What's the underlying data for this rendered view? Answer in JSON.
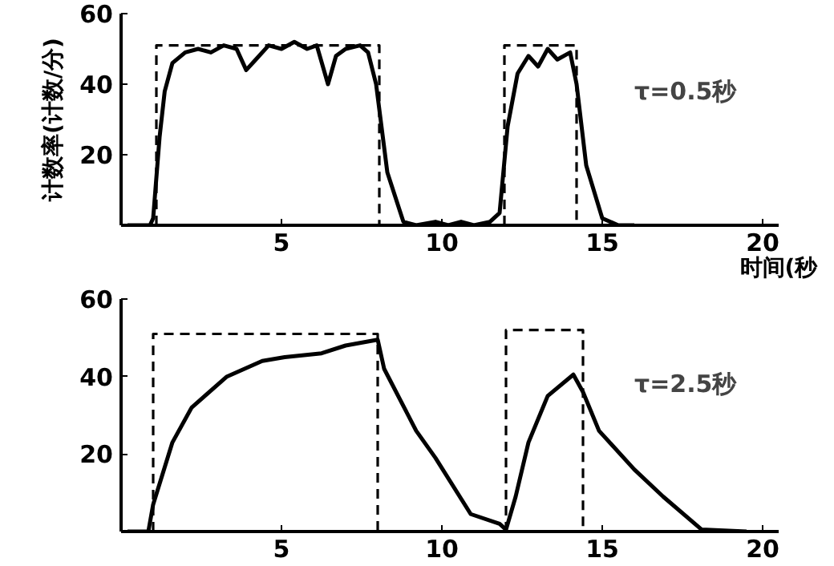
{
  "chart_data": [
    {
      "type": "line",
      "ylabel": "计数率(计数/分)",
      "xlabel": "时间(秒",
      "annotations": [
        "τ=0.5秒"
      ],
      "xlim": [
        0,
        20.5
      ],
      "ylim": [
        0,
        60
      ],
      "xticks": [
        5,
        10,
        15,
        20
      ],
      "yticks": [
        20,
        40,
        60
      ],
      "grid": false,
      "series": [
        {
          "color": "#000000",
          "line_style": "solid",
          "x": [
            0.2,
            0.9,
            1.0,
            1.2,
            1.36,
            1.6,
            2.0,
            2.4,
            2.8,
            3.2,
            3.6,
            3.9,
            4.2,
            4.6,
            5.0,
            5.4,
            5.8,
            6.1,
            6.45,
            6.7,
            7.0,
            7.45,
            7.7,
            7.95,
            8.3,
            8.8,
            9.2,
            9.8,
            10.2,
            10.6,
            11.0,
            11.5,
            11.8,
            12.05,
            12.36,
            12.7,
            13.0,
            13.3,
            13.6,
            14.0,
            14.2,
            14.5,
            15.0,
            15.5,
            16.0
          ],
          "values": [
            0,
            0,
            2,
            25,
            38,
            46,
            49,
            50,
            49,
            51,
            50,
            44,
            47,
            51,
            50,
            52,
            50,
            51,
            40,
            48,
            50,
            51,
            49,
            40,
            15,
            1,
            0,
            1,
            0,
            1,
            0,
            1,
            3.5,
            28,
            43,
            48,
            45,
            50,
            47,
            49,
            40,
            17,
            2,
            0,
            0
          ]
        },
        {
          "color": "#000000",
          "line_style": "dashed",
          "x": [
            1.1,
            1.1,
            8.05,
            8.05
          ],
          "values": [
            0,
            51,
            51,
            0
          ]
        },
        {
          "color": "#000000",
          "line_style": "dashed",
          "x": [
            11.95,
            11.95,
            14.2,
            14.2
          ],
          "values": [
            0,
            51,
            51,
            0
          ]
        }
      ]
    },
    {
      "type": "line",
      "annotations": [
        "τ=2.5秒"
      ],
      "xlim": [
        0,
        20.5
      ],
      "ylim": [
        0,
        60
      ],
      "xticks": [
        5,
        10,
        15,
        20
      ],
      "yticks": [
        20,
        40,
        60
      ],
      "grid": false,
      "series": [
        {
          "color": "#000000",
          "line_style": "solid",
          "x": [
            0.2,
            0.85,
            1.0,
            1.6,
            2.2,
            3.3,
            4.4,
            5.1,
            6.25,
            7.0,
            8.0,
            8.2,
            9.2,
            9.8,
            10.9,
            11.8,
            12.0,
            12.3,
            12.7,
            13.3,
            14.1,
            14.4,
            14.9,
            16.0,
            16.9,
            18.1,
            19.5
          ],
          "values": [
            0,
            0,
            7,
            23,
            32,
            40,
            44,
            45,
            46,
            48,
            49.5,
            42,
            26,
            19,
            4.5,
            2,
            0.5,
            9,
            23,
            35,
            40.5,
            36,
            26,
            16,
            9,
            0.5,
            0
          ]
        },
        {
          "color": "#000000",
          "line_style": "dashed",
          "x": [
            1.0,
            1.0,
            8.0,
            8.0
          ],
          "values": [
            0,
            51,
            51,
            0
          ]
        },
        {
          "color": "#000000",
          "line_style": "dashed",
          "x": [
            12.0,
            12.0,
            14.4,
            14.4
          ],
          "values": [
            0,
            52,
            52,
            0
          ]
        }
      ]
    }
  ]
}
